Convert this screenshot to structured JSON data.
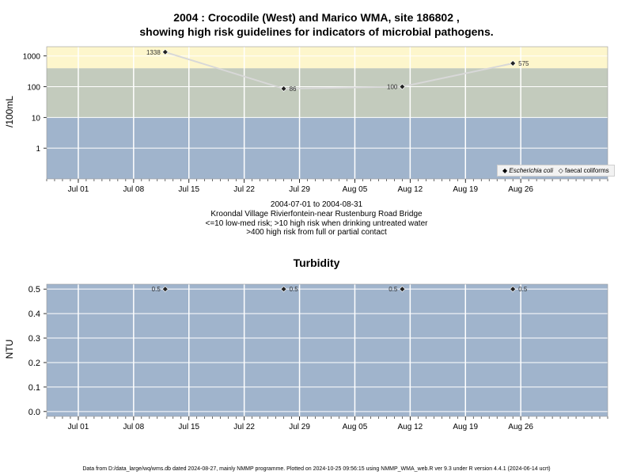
{
  "page": {
    "title_line1": "2004 : Crocodile (West) and Marico WMA, site 186802 ,",
    "title_line2": "showing high risk guidelines for indicators of microbial pathogens.",
    "period": "2004-07-01 to 2004-08-31",
    "site_name": "Kroondal Village Rivierfontein-near Rustenburg Road Bridge",
    "note1": "<=10 low-med risk; >10 high risk when drinking untreated water",
    "note2": ">400 high risk from full or partial contact",
    "footer": "Data from D:/data_large/wq/wms.db dated 2024-08-27, mainly NMMP programme. Plotted on 2024-10-25 09:56:15 using NMMP_WMA_web.R ver 9.3 under R version 4.4.1 (2024-06-14 ucrt)"
  },
  "colors": {
    "band_low": "#a0b4cc",
    "band_mid": "#c3cbbd",
    "band_high": "#fdf6cc",
    "line": "#d8d8d8",
    "grid": "#ffffff"
  },
  "chart_data": [
    {
      "type": "line",
      "title": "",
      "ylabel": "/100mL",
      "yscale": "log",
      "ylim": [
        0.1,
        2000
      ],
      "xlim": [
        "2004-06-27",
        "2004-09-06"
      ],
      "y_ticks": [
        "1",
        "10",
        "100",
        "1000"
      ],
      "x_ticks": [
        "Jul 01",
        "Jul 08",
        "Jul 15",
        "Jul 22",
        "Jul 29",
        "Aug 05",
        "Aug 12",
        "Aug 19",
        "Aug 26"
      ],
      "bands": [
        {
          "from": 0.1,
          "to": 10,
          "label": "low-med risk"
        },
        {
          "from": 10,
          "to": 400,
          "label": "high risk drinking"
        },
        {
          "from": 400,
          "to": 2000,
          "label": "high risk contact"
        }
      ],
      "legend": {
        "position": "bottom-right",
        "entries": [
          "Escherichia coli",
          "faecal coliforms"
        ]
      },
      "series": [
        {
          "name": "Escherichia coli",
          "points": [
            {
              "x": "2004-07-12",
              "y": 1338,
              "label": "1338"
            },
            {
              "x": "2004-07-27",
              "y": 86,
              "label": "86"
            },
            {
              "x": "2004-08-11",
              "y": 100,
              "label": "100"
            },
            {
              "x": "2004-08-25",
              "y": 575,
              "label": "575"
            }
          ]
        }
      ]
    },
    {
      "type": "line",
      "title": "Turbidity",
      "ylabel": "NTU",
      "yscale": "linear",
      "ylim": [
        -0.02,
        0.52
      ],
      "xlim": [
        "2004-06-27",
        "2004-09-06"
      ],
      "y_ticks": [
        "0.0",
        "0.1",
        "0.2",
        "0.3",
        "0.4",
        "0.5"
      ],
      "x_ticks": [
        "Jul 01",
        "Jul 08",
        "Jul 15",
        "Jul 22",
        "Jul 29",
        "Aug 05",
        "Aug 12",
        "Aug 19",
        "Aug 26"
      ],
      "series": [
        {
          "name": "",
          "points": [
            {
              "x": "2004-07-12",
              "y": 0.5,
              "label": "0.5"
            },
            {
              "x": "2004-07-27",
              "y": 0.5,
              "label": "0.5"
            },
            {
              "x": "2004-08-11",
              "y": 0.5,
              "label": "0.5"
            },
            {
              "x": "2004-08-25",
              "y": 0.5,
              "label": "0.5"
            }
          ]
        }
      ]
    }
  ]
}
